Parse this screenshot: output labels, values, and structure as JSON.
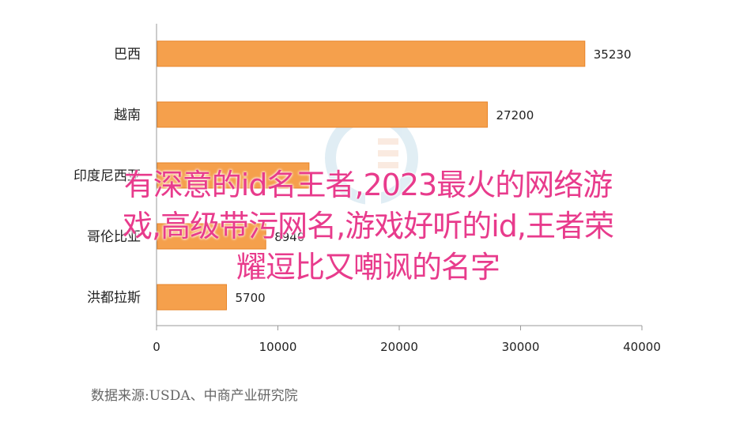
{
  "chart_data": {
    "type": "bar",
    "orientation": "horizontal",
    "categories": [
      "巴西",
      "越南",
      "印度尼西亚",
      "哥伦比亚",
      "洪都拉斯"
    ],
    "values": [
      35230,
      27200,
      12500,
      8940,
      5700
    ],
    "data_labels": [
      "35230",
      "27200",
      "",
      "8940",
      "5700"
    ],
    "xlim": [
      0,
      40000
    ],
    "xticks": [
      "0",
      "10000",
      "20000",
      "30000",
      "40000"
    ],
    "grid": false,
    "legend": "none",
    "bar_color": "#f5a04c",
    "bar_border": "#e8852a"
  },
  "source_note": "数据来源:USDA、中商产业研究院",
  "overlay": {
    "line1": "有深意的id名王者,2023最火的网络游",
    "line2": "戏,高级带污网名,游戏好听的id,王者荣",
    "line3": "耀逗比又嘲讽的名字",
    "color": "#e83b8c"
  }
}
